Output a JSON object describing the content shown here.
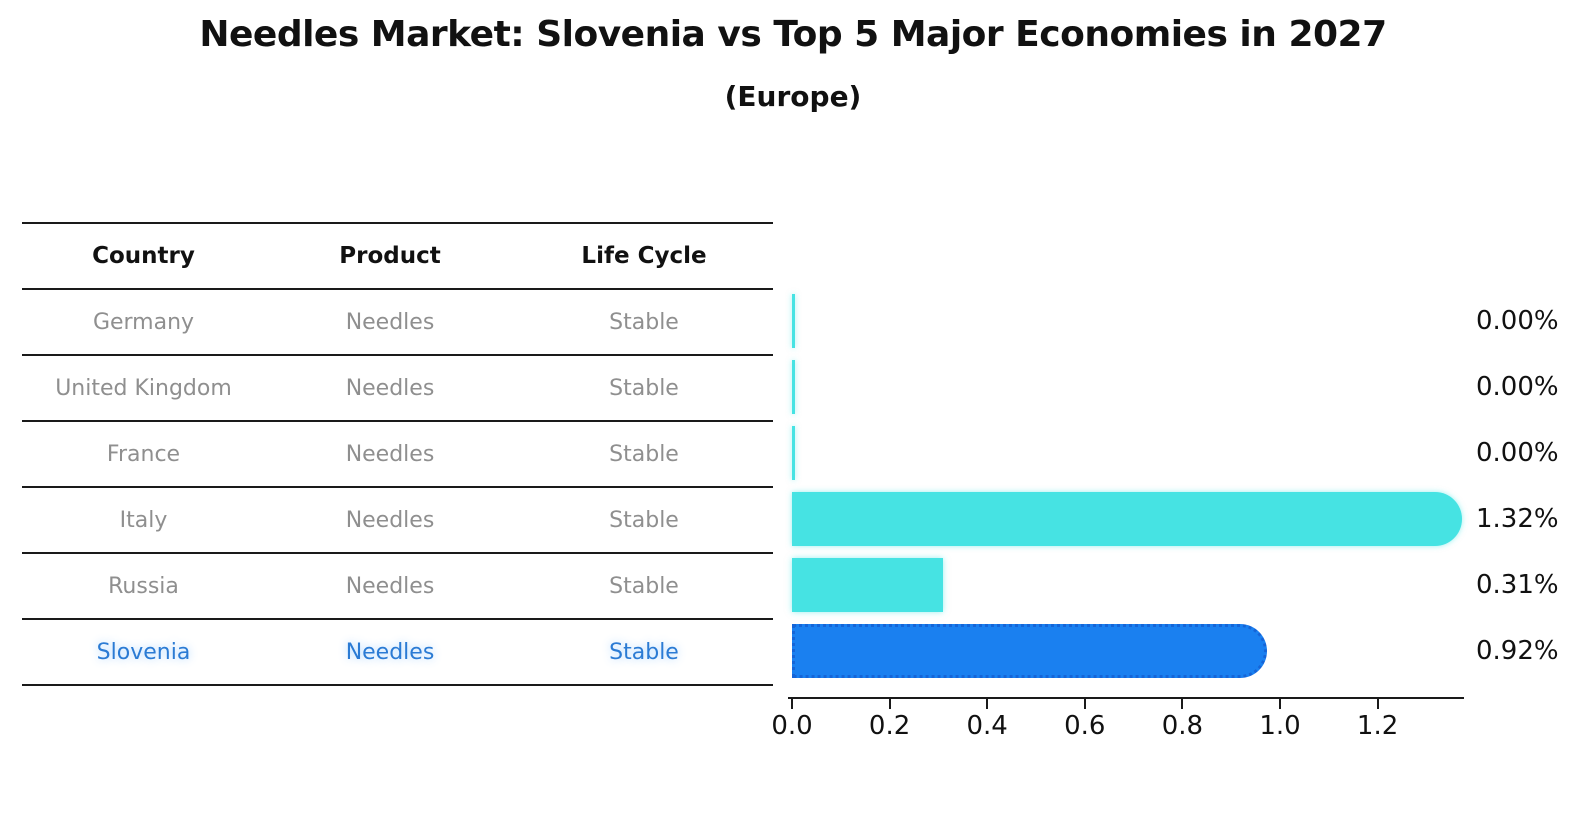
{
  "title": "Needles Market: Slovenia vs Top 5 Major Economies in 2027",
  "subtitle": "(Europe)",
  "table": {
    "headers": [
      "Country",
      "Product",
      "Life Cycle"
    ],
    "rows": [
      {
        "country": "Germany",
        "product": "Needles",
        "life_cycle": "Stable",
        "highlight": false
      },
      {
        "country": "United Kingdom",
        "product": "Needles",
        "life_cycle": "Stable",
        "highlight": false
      },
      {
        "country": "France",
        "product": "Needles",
        "life_cycle": "Stable",
        "highlight": false
      },
      {
        "country": "Italy",
        "product": "Needles",
        "life_cycle": "Stable",
        "highlight": false
      },
      {
        "country": "Russia",
        "product": "Needles",
        "life_cycle": "Stable",
        "highlight": false
      },
      {
        "country": "Slovenia",
        "product": "Needles",
        "life_cycle": "Stable",
        "highlight": true
      }
    ]
  },
  "chart_data": {
    "type": "bar",
    "orientation": "horizontal",
    "title": "Needles Market: Slovenia vs Top 5 Major Economies in 2027",
    "subtitle": "(Europe)",
    "categories": [
      "Germany",
      "United Kingdom",
      "France",
      "Italy",
      "Russia",
      "Slovenia"
    ],
    "values": [
      0.0,
      0.0,
      0.0,
      1.32,
      0.31,
      0.92
    ],
    "value_labels": [
      "0.00%",
      "0.00%",
      "0.00%",
      "1.32%",
      "0.31%",
      "0.92%"
    ],
    "highlight_index": 5,
    "x_ticks": [
      0.0,
      0.2,
      0.4,
      0.6,
      0.8,
      1.0,
      1.2
    ],
    "x_tick_labels": [
      "0.0",
      "0.2",
      "0.4",
      "0.6",
      "0.8",
      "1.0",
      "1.2"
    ],
    "xlim": [
      0,
      1.36
    ],
    "grid": false,
    "legend": false,
    "bar_styles": [
      {
        "rounded": false,
        "dotted": false
      },
      {
        "rounded": false,
        "dotted": false
      },
      {
        "rounded": false,
        "dotted": false
      },
      {
        "rounded": true,
        "dotted": false
      },
      {
        "rounded": false,
        "dotted": false
      },
      {
        "rounded": true,
        "dotted": true
      }
    ]
  },
  "colors": {
    "bar_default": "#46E3E3",
    "bar_highlight": "#1A80F0",
    "bar_highlight_border": "#1565D8",
    "highlight_text": "#2B7BD4",
    "row_text": "#8F8F8F",
    "header_text": "#111111",
    "line": "#1A1A1A"
  }
}
